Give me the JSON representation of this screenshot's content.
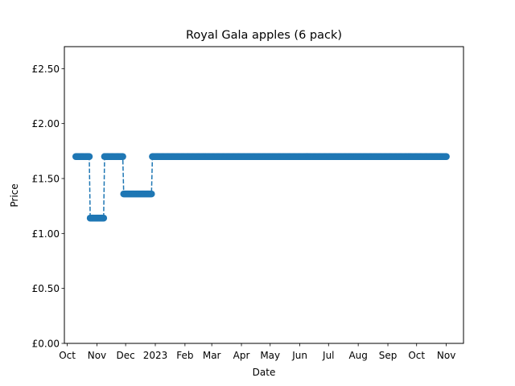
{
  "chart_data": {
    "type": "line",
    "title": "Royal Gala apples (6 pack)",
    "xlabel": "Date",
    "ylabel": "Price",
    "xlim": [
      "2022-09-28",
      "2023-11-19"
    ],
    "ylim": [
      0,
      2.7
    ],
    "y_ticks": [
      0,
      0.5,
      1.0,
      1.5,
      2.0,
      2.5
    ],
    "y_tick_labels": [
      "£0.00",
      "£0.50",
      "£1.00",
      "£1.50",
      "£2.00",
      "£2.50"
    ],
    "x_ticks": [
      "2022-10-01",
      "2022-11-01",
      "2022-12-01",
      "2023-01-01",
      "2023-02-01",
      "2023-03-01",
      "2023-04-01",
      "2023-05-01",
      "2023-06-01",
      "2023-07-01",
      "2023-08-01",
      "2023-09-01",
      "2023-10-01",
      "2023-11-01"
    ],
    "x_tick_labels": [
      "Oct",
      "Nov",
      "Dec",
      "2023",
      "Feb",
      "Mar",
      "Apr",
      "May",
      "Jun",
      "Jul",
      "Aug",
      "Sep",
      "Oct",
      "Nov"
    ],
    "grid": false,
    "line_style": "dashed",
    "marker": "circle",
    "color": "#1f77b4",
    "series": [
      {
        "segments": [
          {
            "start": "2022-10-10",
            "end": "2022-10-24",
            "value": 1.7
          },
          {
            "start": "2022-10-25",
            "end": "2022-11-08",
            "value": 1.14
          },
          {
            "start": "2022-11-09",
            "end": "2022-11-28",
            "value": 1.7
          },
          {
            "start": "2022-11-29",
            "end": "2022-12-28",
            "value": 1.36
          },
          {
            "start": "2022-12-29",
            "end": "2023-11-01",
            "value": 1.7
          }
        ]
      }
    ]
  }
}
